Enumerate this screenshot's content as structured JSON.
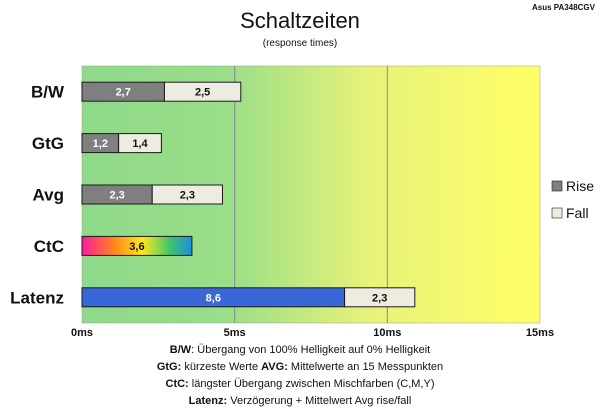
{
  "chart_data": {
    "type": "bar",
    "orientation": "horizontal",
    "stacked": true,
    "title": "Schaltzeiten",
    "subtitle": "(response times)",
    "model": "Asus PA348CGV",
    "categories": [
      "B/W",
      "GtG",
      "Avg",
      "CtC",
      "Latenz"
    ],
    "xlim": [
      0,
      15
    ],
    "xticks": [
      "0ms",
      "5ms",
      "10ms",
      "15ms"
    ],
    "xtick_values": [
      0,
      5,
      10,
      15
    ],
    "grid": true,
    "legend_position": "right",
    "series": [
      {
        "name": "Rise",
        "values": [
          2.7,
          1.2,
          2.3,
          null,
          null
        ],
        "labels": [
          "2,7",
          "1,2",
          "2,3",
          null,
          null
        ],
        "color": "#7f7f7f"
      },
      {
        "name": "Fall",
        "values": [
          2.5,
          1.4,
          2.3,
          null,
          2.3
        ],
        "labels": [
          "2,5",
          "1,4",
          "2,3",
          null,
          "2,3"
        ],
        "color": "#eeece1"
      }
    ],
    "extra_bars": [
      {
        "category": "CtC",
        "value": 3.6,
        "label": "3,6",
        "fill": "rainbow"
      },
      {
        "category": "Latenz",
        "value": 8.6,
        "label": "8,6",
        "fill": "#3a67d8"
      }
    ]
  },
  "notes": [
    [
      {
        "text": "B/W",
        "bold": true
      },
      {
        "text": ":  Übergang von 100% Helligkeit auf 0% Helligkeit",
        "bold": false
      }
    ],
    [
      {
        "text": "GtG:",
        "bold": true
      },
      {
        "text": " kürzeste  Werte       ",
        "bold": false
      },
      {
        "text": "AVG:",
        "bold": true
      },
      {
        "text": " Mittelwerte  an 15 Messpunkten",
        "bold": false
      }
    ],
    [
      {
        "text": "CtC:",
        "bold": true
      },
      {
        "text": " längster Übergang  zwischen Mischfarben  (C,M,Y)",
        "bold": false
      }
    ],
    [
      {
        "text": "Latenz:",
        "bold": true
      },
      {
        "text": " Verzögerung  + Mittelwert Avg rise/fall",
        "bold": false
      }
    ]
  ],
  "colors": {
    "plot_left": "#8ed98a",
    "plot_right": "#ffff66",
    "gridline": "#8a8a8a"
  }
}
